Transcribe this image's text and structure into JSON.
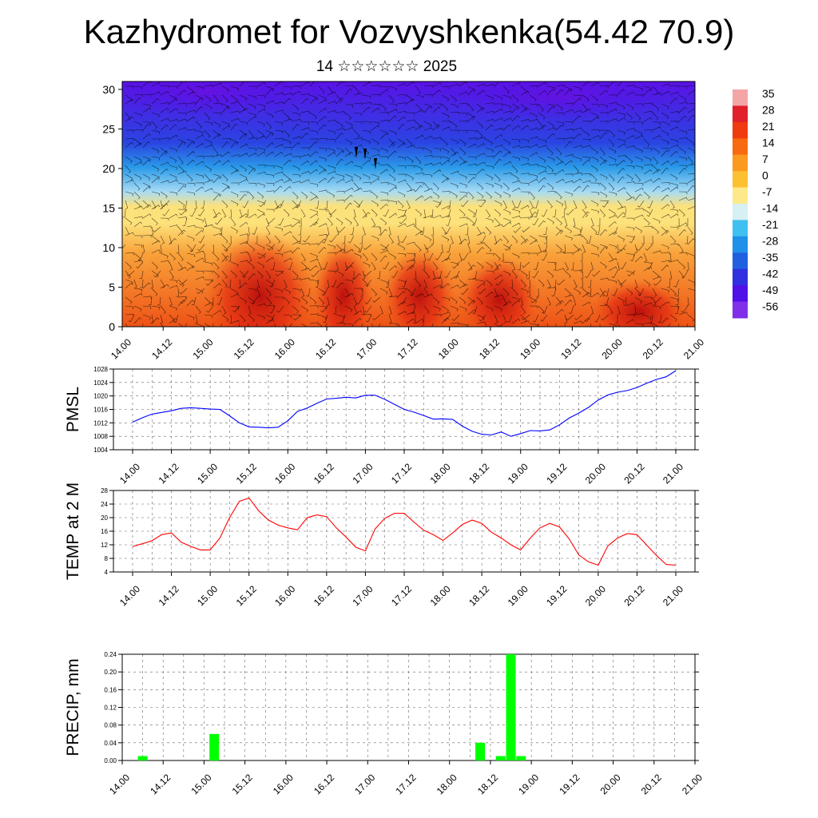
{
  "page": {
    "title": "Kazhydromet for Vozvyshkenka(54.42 70.9)",
    "subtitle": "14 ☆☆☆☆☆☆ 2025"
  },
  "chart_data": [
    {
      "type": "heatmap",
      "title": "",
      "x_categories": [
        "14.00",
        "14.12",
        "15.00",
        "15.12",
        "16.00",
        "16.12",
        "17.00",
        "17.12",
        "18.00",
        "18.12",
        "19.00",
        "19.12",
        "20.00",
        "20.12",
        "21.00"
      ],
      "y_ticks": [
        0,
        5,
        10,
        15,
        20,
        25,
        30
      ],
      "ylim": [
        0,
        31
      ],
      "overlay": "wind barbs",
      "colorbar": {
        "labels": [
          "35",
          "28",
          "21",
          "14",
          "7",
          "0",
          "-7",
          "-14",
          "-21",
          "-28",
          "-35",
          "-42",
          "-49",
          "-56"
        ],
        "colors": [
          "#f4a5a5",
          "#e0202a",
          "#f03a10",
          "#f86a10",
          "#fb9a20",
          "#fdc030",
          "#fde98a",
          "#d6f0f4",
          "#40c0f0",
          "#2090e8",
          "#2060e0",
          "#3030e0",
          "#5010e8",
          "#8030e8"
        ]
      },
      "colors": {
        "stratosphere": "#5a12e6",
        "upper": "#2a44e2",
        "mid_upper": "#2a9ae8",
        "transition": "#a8dcf4",
        "mid": "#fde17a",
        "lower": "#f9a23a",
        "surface": "#ee5216",
        "core": "#c81010"
      }
    },
    {
      "type": "line",
      "ylabel": "PMSL",
      "x_categories": [
        "14.00",
        "14.12",
        "15.00",
        "15.12",
        "16.00",
        "16.12",
        "17.00",
        "17.12",
        "18.00",
        "18.12",
        "19.00",
        "19.12",
        "20.00",
        "20.12",
        "21.00"
      ],
      "y_ticks": [
        1004,
        1008,
        1012,
        1016,
        1020,
        1024,
        1028
      ],
      "ylim": [
        1004,
        1028
      ],
      "series": [
        {
          "color": "#0000ff",
          "x": [
            0,
            3,
            6,
            9,
            12,
            15,
            18,
            21,
            24,
            27,
            30,
            33,
            36,
            39,
            42,
            45,
            48,
            51,
            54,
            57,
            60,
            63,
            66,
            69,
            72,
            75,
            78,
            81,
            84,
            87,
            90,
            93,
            96,
            99,
            102,
            105,
            108,
            111,
            114,
            117,
            120,
            123,
            126,
            129,
            132,
            135,
            138,
            141,
            144,
            147,
            150,
            153,
            156,
            159,
            162,
            165,
            168
          ],
          "values": [
            1012.2,
            1013.5,
            1014.6,
            1015.1,
            1015.6,
            1016.3,
            1016.5,
            1016.3,
            1016.1,
            1016.0,
            1014.1,
            1012.0,
            1010.8,
            1010.7,
            1010.5,
            1010.7,
            1012.6,
            1015.4,
            1016.4,
            1017.8,
            1019.1,
            1019.3,
            1019.6,
            1019.4,
            1020.2,
            1020.2,
            1019.0,
            1017.5,
            1016.0,
            1015.2,
            1014.2,
            1013.1,
            1013.2,
            1013.0,
            1011.0,
            1009.5,
            1008.6,
            1008.4,
            1009.3,
            1008.0,
            1008.8,
            1009.7,
            1009.6,
            1009.9,
            1011.4,
            1013.4,
            1014.9,
            1016.6,
            1018.8,
            1020.3,
            1021.1,
            1021.6,
            1022.5,
            1023.8,
            1024.9,
            1025.7,
            1027.5
          ]
        }
      ]
    },
    {
      "type": "line",
      "ylabel": "TEMP at 2 M",
      "x_categories": [
        "14.00",
        "14.12",
        "15.00",
        "15.12",
        "16.00",
        "16.12",
        "17.00",
        "17.12",
        "18.00",
        "18.12",
        "19.00",
        "19.12",
        "20.00",
        "20.12",
        "21.00"
      ],
      "y_ticks": [
        4,
        8,
        12,
        16,
        20,
        24,
        28
      ],
      "ylim": [
        4,
        28
      ],
      "series": [
        {
          "color": "#ff0000",
          "x": [
            0,
            3,
            6,
            9,
            12,
            15,
            18,
            21,
            24,
            27,
            30,
            33,
            36,
            39,
            42,
            45,
            48,
            51,
            54,
            57,
            60,
            63,
            66,
            69,
            72,
            75,
            78,
            81,
            84,
            87,
            90,
            93,
            96,
            99,
            102,
            105,
            108,
            111,
            114,
            117,
            120,
            123,
            126,
            129,
            132,
            135,
            138,
            141,
            144,
            147,
            150,
            153,
            156,
            159,
            162,
            165,
            168
          ],
          "values": [
            11.5,
            12.3,
            13.2,
            15.0,
            15.5,
            12.8,
            11.5,
            10.5,
            10.5,
            14.0,
            20.0,
            24.8,
            25.8,
            22.0,
            19.3,
            17.8,
            17.0,
            16.4,
            20.0,
            20.8,
            20.3,
            17.0,
            14.3,
            11.3,
            10.2,
            16.7,
            19.8,
            21.3,
            21.3,
            18.7,
            16.3,
            15.0,
            13.3,
            15.5,
            18.0,
            19.3,
            18.3,
            15.7,
            14.0,
            12.0,
            10.5,
            14.0,
            17.0,
            18.3,
            17.3,
            13.8,
            9.0,
            7.0,
            6.0,
            11.7,
            14.0,
            15.3,
            15.0,
            11.9,
            8.9,
            6.2,
            6.0
          ]
        }
      ]
    },
    {
      "type": "bar",
      "ylabel": "PRECIP, mm",
      "x_categories": [
        "14.00",
        "14.12",
        "15.00",
        "15.12",
        "16.00",
        "16.12",
        "17.00",
        "17.12",
        "18.00",
        "18.12",
        "19.00",
        "19.12",
        "20.00",
        "20.12",
        "21.00"
      ],
      "y_ticks": [
        "0.00",
        "0.04",
        "0.08",
        "0.12",
        "0.16",
        "0.20",
        "0.24"
      ],
      "ylim": [
        0,
        0.24
      ],
      "bar_color": "#00ff00",
      "bars": [
        {
          "x": 6,
          "value": 0.01
        },
        {
          "x": 27,
          "value": 0.06
        },
        {
          "x": 105,
          "value": 0.04
        },
        {
          "x": 111,
          "value": 0.01
        },
        {
          "x": 114,
          "value": 0.24
        },
        {
          "x": 117,
          "value": 0.01
        }
      ]
    }
  ]
}
